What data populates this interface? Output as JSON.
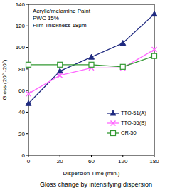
{
  "chart_data": {
    "type": "line",
    "title": "Gloss change by intensifying dispersion",
    "annotations": [
      "Acrylic/melamine Paint",
      "PWC 15%",
      "Film Thickness 18μm"
    ],
    "x_label": "Dispersion Time (min.)",
    "y_label": "Gloss (20° -20°)",
    "categories": [
      "0",
      "20",
      "60",
      "120",
      "180"
    ],
    "series": [
      {
        "name": "TTO-51(A)",
        "color": "#1f2a80",
        "marker": "triangle",
        "line_style": "solid",
        "values": [
          48,
          78,
          91,
          104,
          131
        ]
      },
      {
        "name": "TTO-55(B)",
        "color": "#ff66ff",
        "marker": "x",
        "line_style": "solid",
        "values": [
          57,
          74,
          81,
          81,
          98
        ]
      },
      {
        "name": "CR-50",
        "color": "#339933",
        "marker": "square",
        "line_style": "solid",
        "values": [
          84,
          84,
          84,
          82,
          92
        ]
      }
    ],
    "ylim": [
      0,
      140
    ],
    "yticks": [
      0,
      20,
      40,
      60,
      80,
      100,
      120,
      140
    ],
    "grid": false,
    "legend": "lower right"
  }
}
